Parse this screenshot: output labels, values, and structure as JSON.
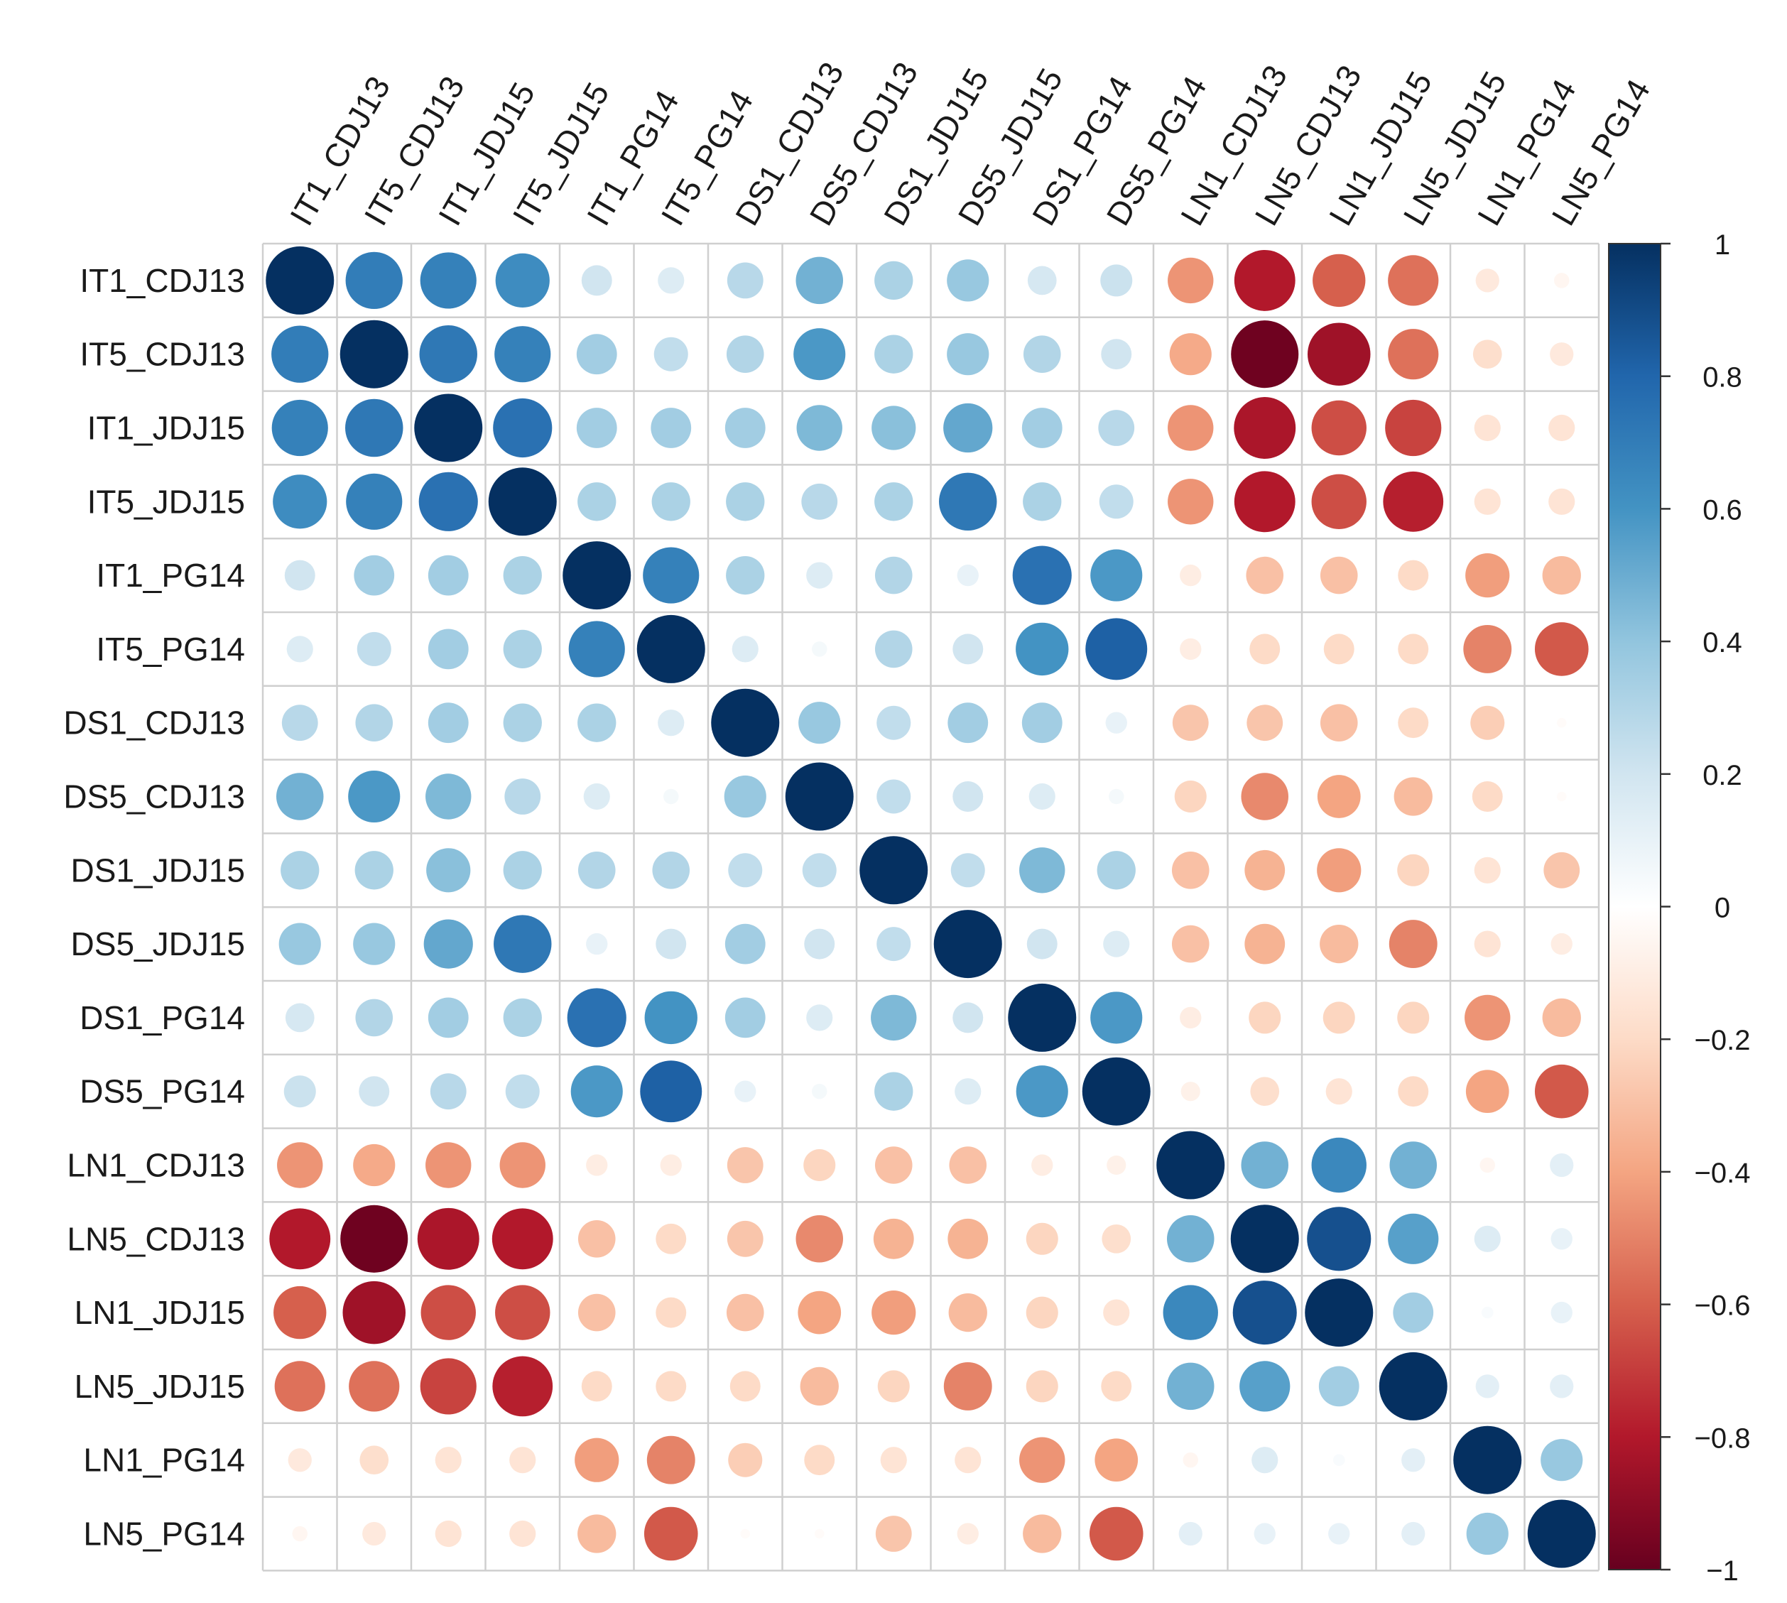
{
  "chart_data": {
    "type": "heatmap",
    "title": "",
    "variables": [
      "IT1_CDJ13",
      "IT5_CDJ13",
      "IT1_JDJ15",
      "IT5_JDJ15",
      "IT1_PG14",
      "IT5_PG14",
      "DS1_CDJ13",
      "DS5_CDJ13",
      "DS1_JDJ15",
      "DS5_JDJ15",
      "DS1_PG14",
      "DS5_PG14",
      "LN1_CDJ13",
      "LN5_CDJ13",
      "LN1_JDJ15",
      "LN5_JDJ15",
      "LN1_PG14",
      "LN5_PG14"
    ],
    "matrix": [
      [
        1.0,
        0.7,
        0.68,
        0.63,
        0.2,
        0.15,
        0.28,
        0.48,
        0.32,
        0.38,
        0.18,
        0.22,
        -0.45,
        -0.8,
        -0.6,
        -0.55,
        -0.12,
        -0.05
      ],
      [
        0.7,
        1.0,
        0.72,
        0.68,
        0.35,
        0.25,
        0.3,
        0.58,
        0.32,
        0.38,
        0.3,
        0.2,
        -0.38,
        -0.98,
        -0.85,
        -0.55,
        -0.18,
        -0.12
      ],
      [
        0.68,
        0.72,
        1.0,
        0.75,
        0.35,
        0.35,
        0.35,
        0.45,
        0.42,
        0.52,
        0.35,
        0.28,
        -0.45,
        -0.82,
        -0.65,
        -0.68,
        -0.15,
        -0.15
      ],
      [
        0.63,
        0.68,
        0.75,
        1.0,
        0.32,
        0.32,
        0.32,
        0.28,
        0.32,
        0.72,
        0.32,
        0.25,
        -0.45,
        -0.8,
        -0.65,
        -0.78,
        -0.15,
        -0.15
      ],
      [
        0.2,
        0.35,
        0.35,
        0.32,
        1.0,
        0.68,
        0.32,
        0.15,
        0.3,
        0.1,
        0.75,
        0.58,
        -0.1,
        -0.3,
        -0.3,
        -0.2,
        -0.42,
        -0.32
      ],
      [
        0.15,
        0.25,
        0.35,
        0.32,
        0.68,
        1.0,
        0.15,
        0.05,
        0.3,
        0.2,
        0.6,
        0.82,
        -0.1,
        -0.2,
        -0.2,
        -0.2,
        -0.5,
        -0.62
      ],
      [
        0.28,
        0.3,
        0.35,
        0.32,
        0.32,
        0.15,
        1.0,
        0.38,
        0.25,
        0.35,
        0.35,
        0.1,
        -0.28,
        -0.28,
        -0.3,
        -0.2,
        -0.25,
        -0.02
      ],
      [
        0.48,
        0.58,
        0.45,
        0.28,
        0.15,
        0.05,
        0.38,
        1.0,
        0.25,
        0.2,
        0.15,
        0.05,
        -0.22,
        -0.48,
        -0.4,
        -0.32,
        -0.2,
        -0.02
      ],
      [
        0.32,
        0.32,
        0.42,
        0.32,
        0.3,
        0.3,
        0.25,
        0.25,
        1.0,
        0.25,
        0.45,
        0.32,
        -0.3,
        -0.35,
        -0.42,
        -0.22,
        -0.15,
        -0.28
      ],
      [
        0.38,
        0.38,
        0.52,
        0.72,
        0.1,
        0.2,
        0.35,
        0.2,
        0.25,
        1.0,
        0.2,
        0.15,
        -0.3,
        -0.35,
        -0.32,
        -0.5,
        -0.15,
        -0.1
      ],
      [
        0.18,
        0.3,
        0.35,
        0.32,
        0.75,
        0.6,
        0.35,
        0.15,
        0.45,
        0.2,
        1.0,
        0.58,
        -0.1,
        -0.22,
        -0.22,
        -0.22,
        -0.45,
        -0.32
      ],
      [
        0.22,
        0.2,
        0.28,
        0.25,
        0.58,
        0.82,
        0.1,
        0.05,
        0.32,
        0.15,
        0.58,
        1.0,
        -0.08,
        -0.18,
        -0.15,
        -0.2,
        -0.4,
        -0.62
      ],
      [
        -0.45,
        -0.38,
        -0.45,
        -0.45,
        -0.1,
        -0.1,
        -0.28,
        -0.22,
        -0.3,
        -0.3,
        -0.1,
        -0.08,
        1.0,
        0.48,
        0.65,
        0.48,
        -0.05,
        0.12
      ],
      [
        -0.8,
        -0.98,
        -0.82,
        -0.8,
        -0.3,
        -0.2,
        -0.28,
        -0.48,
        -0.35,
        -0.35,
        -0.22,
        -0.18,
        0.48,
        1.0,
        0.88,
        0.55,
        0.15,
        0.1
      ],
      [
        -0.6,
        -0.85,
        -0.65,
        -0.65,
        -0.3,
        -0.2,
        -0.3,
        -0.4,
        -0.42,
        -0.32,
        -0.22,
        -0.15,
        0.65,
        0.88,
        1.0,
        0.35,
        0.03,
        0.1
      ],
      [
        -0.55,
        -0.55,
        -0.68,
        -0.78,
        -0.2,
        -0.2,
        -0.2,
        -0.32,
        -0.22,
        -0.5,
        -0.22,
        -0.2,
        0.48,
        0.55,
        0.35,
        1.0,
        0.12,
        0.12
      ],
      [
        -0.12,
        -0.18,
        -0.15,
        -0.15,
        -0.42,
        -0.5,
        -0.25,
        -0.2,
        -0.15,
        -0.15,
        -0.45,
        -0.4,
        -0.05,
        0.15,
        0.03,
        0.12,
        1.0,
        0.38
      ],
      [
        -0.05,
        -0.12,
        -0.15,
        -0.15,
        -0.32,
        -0.62,
        -0.02,
        -0.02,
        -0.28,
        -0.1,
        -0.32,
        -0.62,
        0.12,
        0.1,
        0.1,
        0.12,
        0.38,
        1.0
      ]
    ],
    "colorbar": {
      "range": [
        -1,
        1
      ],
      "ticks": [
        {
          "value": 1,
          "label": "1"
        },
        {
          "value": 0.8,
          "label": "0.8"
        },
        {
          "value": 0.6,
          "label": "0.6"
        },
        {
          "value": 0.4,
          "label": "0.4"
        },
        {
          "value": 0.2,
          "label": "0.2"
        },
        {
          "value": 0,
          "label": "0"
        },
        {
          "value": -0.2,
          "label": "−0.2"
        },
        {
          "value": -0.4,
          "label": "−0.4"
        },
        {
          "value": -0.6,
          "label": "−0.6"
        },
        {
          "value": -0.8,
          "label": "−0.8"
        },
        {
          "value": -1,
          "label": "−1"
        }
      ],
      "palette": [
        "#67001F",
        "#B2182B",
        "#D6604D",
        "#F4A582",
        "#FDDBC7",
        "#FFFFFF",
        "#D1E5F0",
        "#92C5DE",
        "#4393C3",
        "#2166AC",
        "#053061"
      ]
    },
    "glyph": "circle",
    "grid": true,
    "legend_position": "right"
  }
}
